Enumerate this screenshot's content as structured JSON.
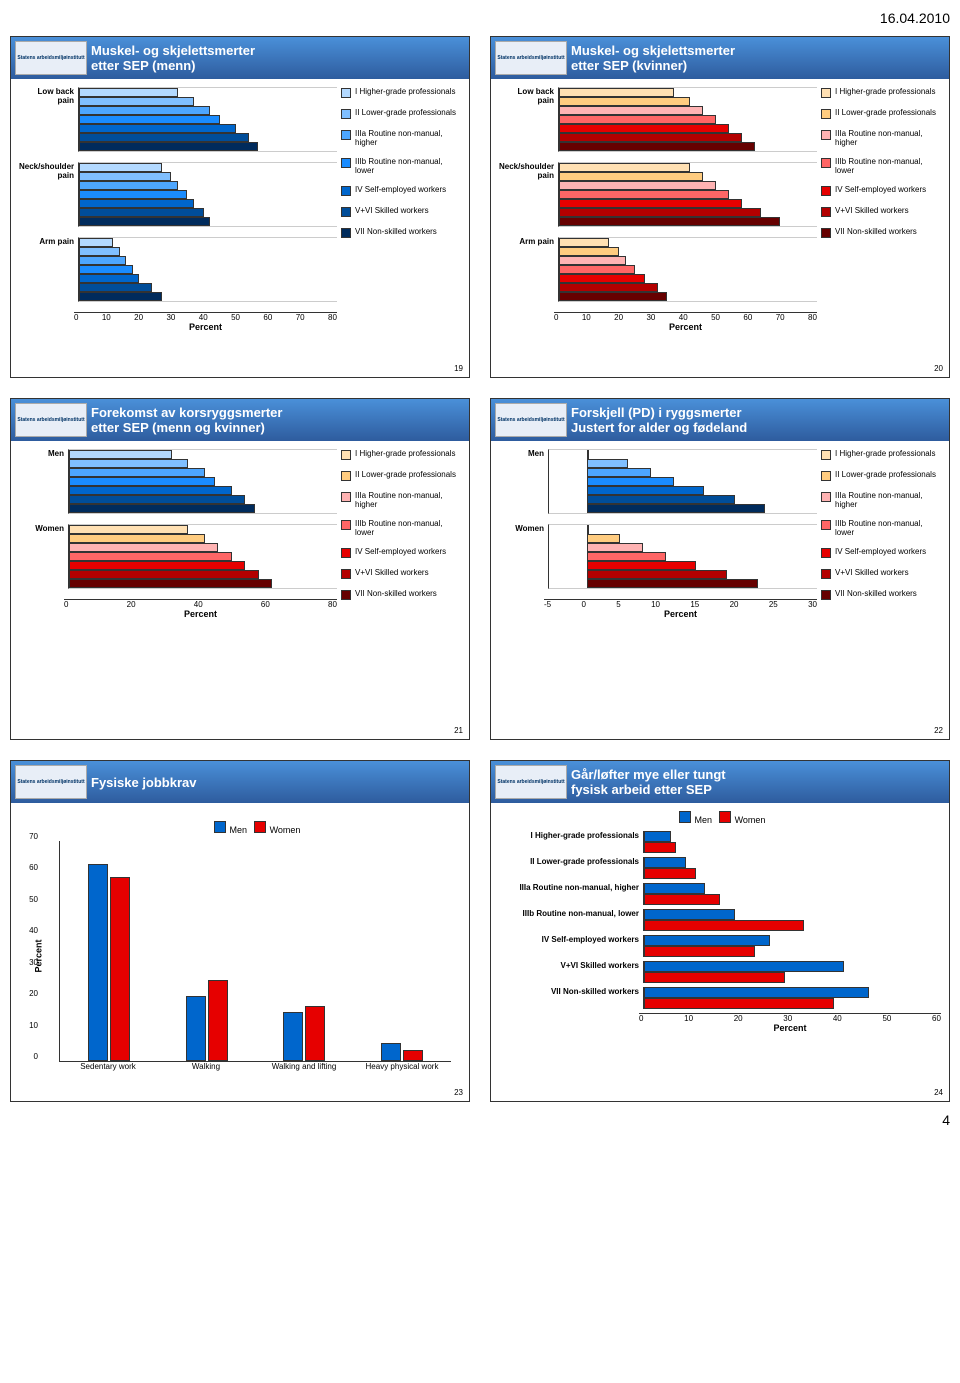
{
  "header_date": "16.04.2010",
  "page_number": "4",
  "colors": {
    "blues": [
      "#b3d9ff",
      "#80bfff",
      "#4da6ff",
      "#1a8cff",
      "#0066cc",
      "#004d99",
      "#002b5c"
    ],
    "reds": [
      "#ffe0b3",
      "#ffcc80",
      "#ffb3b3",
      "#ff6666",
      "#e60000",
      "#b30000",
      "#660000"
    ],
    "men": "#0066cc",
    "women": "#e60000"
  },
  "sep_legend": [
    "I Higher-grade professionals",
    "II Lower-grade professionals",
    "IIIa Routine non-manual, higher",
    "IIIb Routine non-manual, lower",
    "IV Self-employed workers",
    "V+VI Skilled workers",
    "VII Non-skilled workers"
  ],
  "slide19": {
    "title_line1": "Muskel- og skjelettsmerter",
    "title_line2": "etter SEP (menn)",
    "slide_num": "19",
    "x_label": "Percent",
    "x_ticks": [
      "0",
      "10",
      "20",
      "30",
      "40",
      "50",
      "60",
      "70",
      "80"
    ],
    "x_max": 80,
    "categories": [
      "Low back pain",
      "Neck/shoulder pain",
      "Arm pain"
    ],
    "data": {
      "Low back pain": [
        30,
        35,
        40,
        43,
        48,
        52,
        55
      ],
      "Neck/shoulder pain": [
        25,
        28,
        30,
        33,
        35,
        38,
        40
      ],
      "Arm pain": [
        10,
        12,
        14,
        16,
        18,
        22,
        25
      ]
    },
    "palette": "blues"
  },
  "slide20": {
    "title_line1": "Muskel- og skjelettsmerter",
    "title_line2": "etter SEP (kvinner)",
    "slide_num": "20",
    "x_label": "Percent",
    "x_ticks": [
      "0",
      "10",
      "20",
      "30",
      "40",
      "50",
      "60",
      "70",
      "80"
    ],
    "x_max": 80,
    "categories": [
      "Low back pain",
      "Neck/shoulder pain",
      "Arm pain"
    ],
    "data": {
      "Low back pain": [
        35,
        40,
        44,
        48,
        52,
        56,
        60
      ],
      "Neck/shoulder pain": [
        40,
        44,
        48,
        52,
        56,
        62,
        68
      ],
      "Arm pain": [
        15,
        18,
        20,
        23,
        26,
        30,
        33
      ]
    },
    "palette": "reds"
  },
  "slide21": {
    "title_line1": "Forekomst av korsryggsmerter",
    "title_line2": "etter SEP (menn og kvinner)",
    "slide_num": "21",
    "x_label": "Percent",
    "x_ticks": [
      "0",
      "20",
      "40",
      "60",
      "80"
    ],
    "x_max": 80,
    "categories": [
      "Men",
      "Women"
    ],
    "data": {
      "Men": [
        30,
        35,
        40,
        43,
        48,
        52,
        55
      ],
      "Women": [
        35,
        40,
        44,
        48,
        52,
        56,
        60
      ]
    },
    "palettes": {
      "Men": "blues",
      "Women": "reds"
    }
  },
  "slide22": {
    "title_line1": "Forskjell (PD) i ryggsmerter",
    "title_line2": "Justert for alder og fødeland",
    "slide_num": "22",
    "x_label": "Percent",
    "x_ticks": [
      "-5",
      "0",
      "5",
      "10",
      "15",
      "20",
      "25",
      "30"
    ],
    "x_min": -5,
    "x_max": 30,
    "categories": [
      "Men",
      "Women"
    ],
    "data": {
      "Men": [
        0,
        5,
        8,
        11,
        15,
        19,
        23
      ],
      "Women": [
        0,
        4,
        7,
        10,
        14,
        18,
        22
      ]
    },
    "palettes": {
      "Men": "blues",
      "Women": "reds"
    }
  },
  "slide23": {
    "title": "Fysiske jobbkrav",
    "slide_num": "23",
    "y_label": "Percent",
    "y_ticks": [
      "0",
      "10",
      "20",
      "30",
      "40",
      "50",
      "60",
      "70"
    ],
    "y_max": 70,
    "categories": [
      "Sedentary work",
      "Walking",
      "Walking and lifting",
      "Heavy physical work"
    ],
    "legend": [
      "Men",
      "Women"
    ],
    "men": [
      62,
      20,
      15,
      5
    ],
    "women": [
      58,
      25,
      17,
      3
    ]
  },
  "slide24": {
    "title_line1": "Går/løfter mye eller tungt",
    "title_line2": "fysisk arbeid etter SEP",
    "slide_num": "24",
    "x_label": "Percent",
    "x_ticks": [
      "0",
      "10",
      "20",
      "30",
      "40",
      "50",
      "60"
    ],
    "x_max": 60,
    "legend": [
      "Men",
      "Women"
    ],
    "categories": [
      "I Higher-grade professionals",
      "II Lower-grade professionals",
      "IIIa Routine non-manual, higher",
      "IIIb Routine non-manual, lower",
      "IV Self-employed workers",
      "V+VI Skilled workers",
      "VII Non-skilled workers"
    ],
    "men": [
      5,
      8,
      12,
      18,
      25,
      40,
      45
    ],
    "women": [
      6,
      10,
      15,
      32,
      22,
      28,
      38
    ]
  }
}
